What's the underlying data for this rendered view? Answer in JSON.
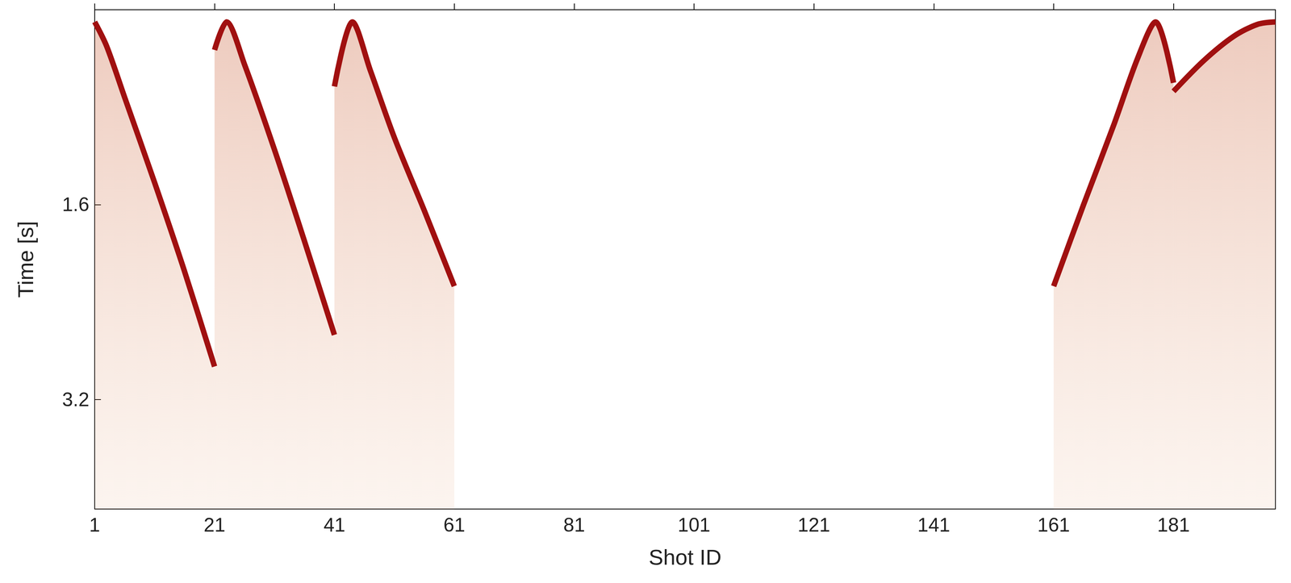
{
  "chart_data": {
    "type": "line",
    "xlabel": "Shot ID",
    "ylabel": "Time [s]",
    "xlim": [
      1,
      198
    ],
    "ylim": [
      0,
      4.1
    ],
    "xticks": [
      1,
      21,
      41,
      61,
      81,
      101,
      121,
      141,
      161,
      181
    ],
    "yticks": [
      1.6,
      3.2
    ],
    "grid": false,
    "color": "#a01010",
    "series": [
      {
        "x": [
          1,
          3,
          6,
          11,
          16,
          21
        ],
        "values": [
          0.1,
          0.3,
          0.72,
          1.42,
          2.15,
          2.93
        ]
      },
      {
        "x": [
          21,
          23,
          26,
          31,
          36,
          41
        ],
        "values": [
          0.33,
          0.1,
          0.45,
          1.15,
          1.9,
          2.67
        ]
      },
      {
        "x": [
          41,
          44,
          47,
          51,
          56,
          61
        ],
        "values": [
          0.63,
          0.1,
          0.5,
          1.05,
          1.65,
          2.27
        ]
      },
      {
        "x": [
          161,
          166,
          171,
          175,
          178,
          181
        ],
        "values": [
          2.27,
          1.6,
          0.95,
          0.4,
          0.1,
          0.6
        ]
      },
      {
        "x": [
          181,
          186,
          191,
          195,
          198
        ],
        "values": [
          0.67,
          0.42,
          0.22,
          0.12,
          0.1
        ]
      }
    ]
  }
}
